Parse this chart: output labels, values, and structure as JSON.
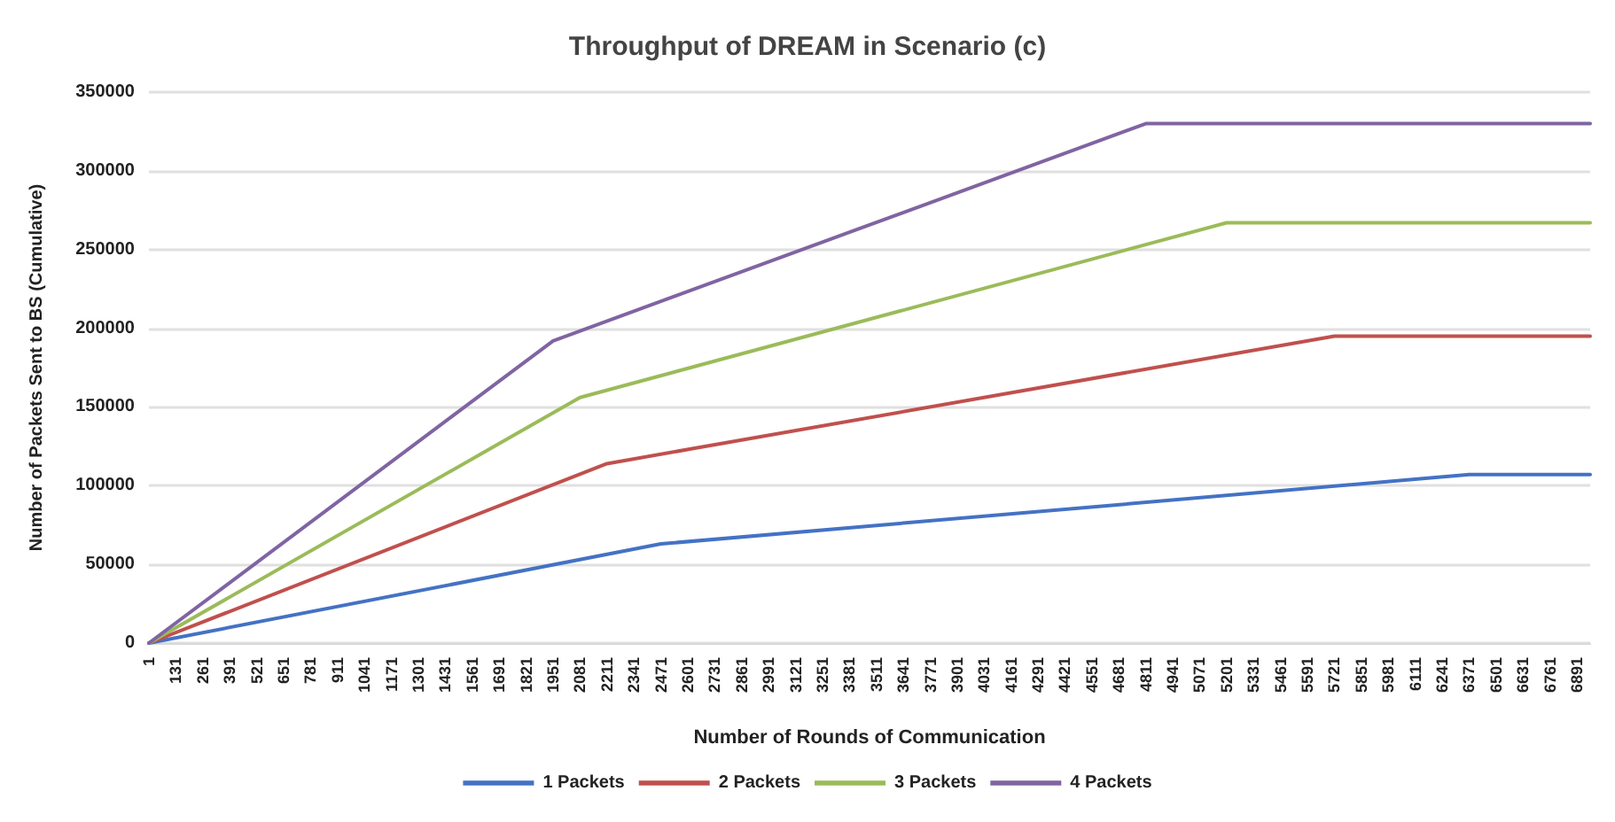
{
  "chart_data": {
    "type": "line",
    "title": "Throughput of DREAM in Scenario (c)",
    "xlabel": "Number of Rounds of Communication",
    "ylabel": "Number of Packets Sent to BS (Cumulative)",
    "xlim": [
      1,
      6955
    ],
    "xticks": [
      1,
      131,
      261,
      391,
      521,
      651,
      781,
      911,
      1041,
      1171,
      1301,
      1431,
      1561,
      1691,
      1821,
      1951,
      2081,
      2211,
      2341,
      2471,
      2601,
      2731,
      2861,
      2991,
      3121,
      3251,
      3381,
      3511,
      3641,
      3771,
      3901,
      4031,
      4161,
      4291,
      4421,
      4551,
      4681,
      4811,
      4941,
      5071,
      5201,
      5331,
      5461,
      5591,
      5721,
      5851,
      5981,
      6111,
      6241,
      6371,
      6501,
      6631,
      6761,
      6891
    ],
    "ylim": [
      0,
      350000
    ],
    "yticks": [
      0,
      50000,
      100000,
      150000,
      200000,
      250000,
      300000,
      350000
    ],
    "series": [
      {
        "name": "1 Packets",
        "color": "#4472c4",
        "x": [
          1,
          2471,
          6371,
          6955
        ],
        "values": [
          0,
          63000,
          107000,
          107000
        ]
      },
      {
        "name": "2 Packets",
        "color": "#c0504d",
        "x": [
          1,
          2211,
          5721,
          6955
        ],
        "values": [
          0,
          114000,
          195000,
          195000
        ]
      },
      {
        "name": "3 Packets",
        "color": "#9bbb59",
        "x": [
          1,
          2081,
          5201,
          6955
        ],
        "values": [
          0,
          156000,
          267000,
          267000
        ]
      },
      {
        "name": "4 Packets",
        "color": "#8064a2",
        "x": [
          1,
          1951,
          4811,
          6955
        ],
        "values": [
          0,
          192000,
          330000,
          330000
        ]
      }
    ],
    "grid": "y",
    "legend": "bottom",
    "marker": "none",
    "line_style": "solid"
  }
}
